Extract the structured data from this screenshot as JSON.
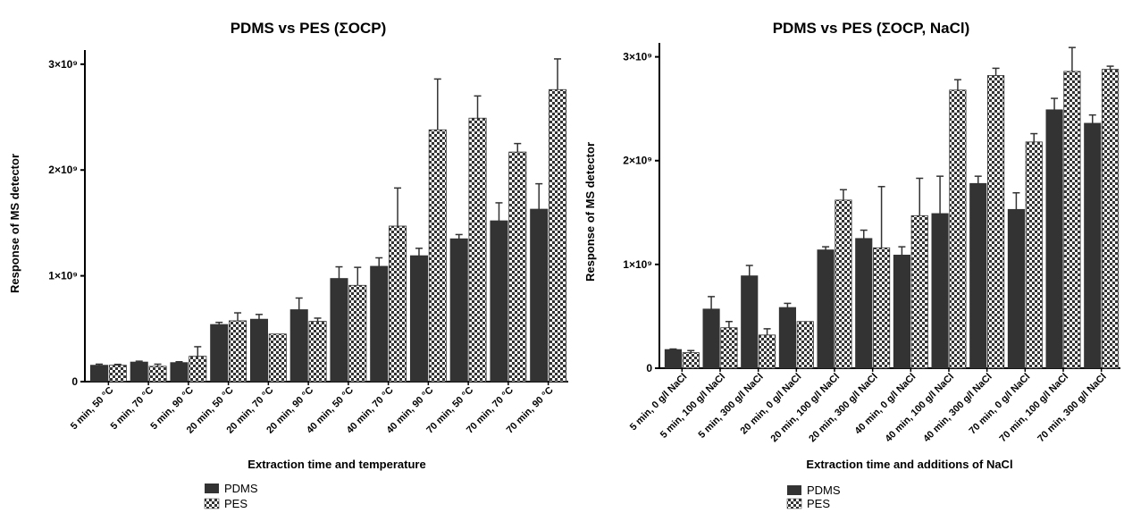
{
  "chart_data": [
    {
      "type": "bar",
      "title": "PDMS vs PES (ΣOCP)",
      "xlabel": "Extraction time and temperature",
      "ylabel": "Response of MS detector",
      "ylim": [
        0,
        3100000000
      ],
      "yticks": [
        {
          "value": 0,
          "label": "0"
        },
        {
          "value": 1000000000,
          "label": "1×10⁹"
        },
        {
          "value": 2000000000,
          "label": "2×10⁹"
        },
        {
          "value": 3000000000,
          "label": "3×10⁹"
        }
      ],
      "categories": [
        "5 min, 50 °C",
        "5 min, 70 °C",
        "5 min, 90 °C",
        "20 min, 50 °C",
        "20 min, 70 °C",
        "20 min, 90 °C",
        "40 min, 50 °C",
        "40 min, 70 °C",
        "40 min, 90 °C",
        "70 min, 50 °C",
        "70 min, 70 °C",
        "70 min, 90 °C"
      ],
      "series": [
        {
          "name": "PDMS",
          "color": "#333333",
          "pattern": "solid",
          "values": [
            155000000,
            185000000,
            180000000,
            540000000,
            590000000,
            680000000,
            975000000,
            1090000000,
            1190000000,
            1350000000,
            1520000000,
            1630000000
          ],
          "errors": [
            10000000,
            8000000,
            8000000,
            20000000,
            45000000,
            110000000,
            110000000,
            80000000,
            70000000,
            40000000,
            170000000,
            240000000
          ]
        },
        {
          "name": "PES",
          "color": "#333333",
          "pattern": "checker",
          "values": [
            155000000,
            145000000,
            240000000,
            575000000,
            450000000,
            570000000,
            910000000,
            1470000000,
            2380000000,
            2490000000,
            2170000000,
            2760000000
          ],
          "errors": [
            8000000,
            20000000,
            90000000,
            75000000,
            0,
            30000000,
            170000000,
            360000000,
            480000000,
            210000000,
            80000000,
            290000000
          ]
        }
      ],
      "legend": "bottom-left",
      "grid": false
    },
    {
      "type": "bar",
      "title": "PDMS vs PES (ΣOCP, NaCl)",
      "xlabel": "Extraction time and additions of NaCl",
      "ylabel": "Response of MS detector",
      "ylim": [
        0,
        3100000000
      ],
      "yticks": [
        {
          "value": 0,
          "label": "0"
        },
        {
          "value": 1000000000,
          "label": "1×10⁹"
        },
        {
          "value": 2000000000,
          "label": "2×10⁹"
        },
        {
          "value": 3000000000,
          "label": "3×10⁹"
        }
      ],
      "categories": [
        "5 min, 0 g/l NaCl",
        "5 min, 100 g/l NaCl",
        "5 min, 300 g/l NaCl",
        "20 min, 0 g/l NaCl",
        "20 min, 100 g/l NaCl",
        "20 min, 300 g/l NaCl",
        "40 min, 0 g/l NaCl",
        "40 min, 100 g/l NaCl",
        "40 min, 300 g/l NaCl",
        "70 min, 0 g/l NaCl",
        "70 min, 100 g/l NaCl",
        "70 min, 300 g/l NaCl"
      ],
      "series": [
        {
          "name": "PDMS",
          "color": "#333333",
          "pattern": "solid",
          "values": [
            180000000,
            570000000,
            890000000,
            585000000,
            1140000000,
            1250000000,
            1090000000,
            1490000000,
            1780000000,
            1530000000,
            2490000000,
            2360000000
          ],
          "errors": [
            5000000,
            120000000,
            100000000,
            40000000,
            30000000,
            80000000,
            80000000,
            360000000,
            70000000,
            160000000,
            110000000,
            80000000
          ]
        },
        {
          "name": "PES",
          "color": "#333333",
          "pattern": "checker",
          "values": [
            150000000,
            390000000,
            320000000,
            450000000,
            1620000000,
            1160000000,
            1470000000,
            2680000000,
            2820000000,
            2180000000,
            2860000000,
            2880000000
          ],
          "errors": [
            20000000,
            60000000,
            60000000,
            0,
            100000000,
            590000000,
            360000000,
            100000000,
            70000000,
            80000000,
            230000000,
            30000000
          ]
        }
      ],
      "legend": "bottom-left",
      "grid": false
    }
  ]
}
